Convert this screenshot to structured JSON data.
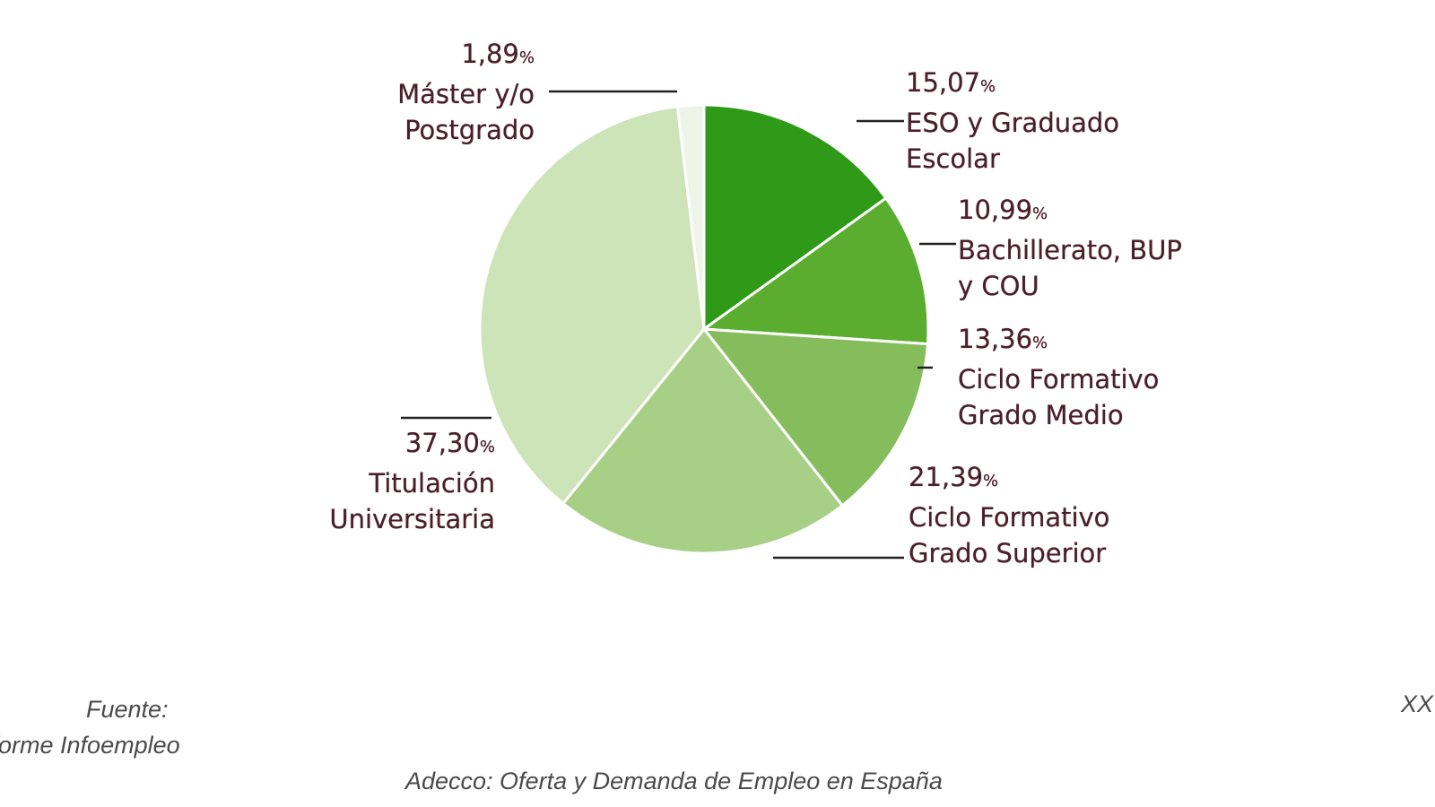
{
  "chart_data": {
    "type": "pie",
    "start_angle_deg": 0,
    "direction": "clockwise",
    "slices": [
      {
        "label_lines": [
          "ESO y Graduado",
          "Escolar"
        ],
        "pct_text": "15,07",
        "value": 15.07,
        "color": "#2f9a17"
      },
      {
        "label_lines": [
          "Bachillerato, BUP",
          "y COU"
        ],
        "pct_text": "10,99",
        "value": 10.99,
        "color": "#5aad2f"
      },
      {
        "label_lines": [
          "Ciclo Formativo",
          "Grado Medio"
        ],
        "pct_text": "13,36",
        "value": 13.36,
        "color": "#86bd5c"
      },
      {
        "label_lines": [
          "Ciclo Formativo",
          "Grado Superior"
        ],
        "pct_text": "21,39",
        "value": 21.39,
        "color": "#a8cf86"
      },
      {
        "label_lines": [
          "Titulación",
          "Universitaria"
        ],
        "pct_text": "37,30",
        "value": 37.3,
        "color": "#cde3b8"
      },
      {
        "label_lines": [
          "Máster y/o",
          "Postgrado"
        ],
        "pct_text": "1,89",
        "value": 1.89,
        "color": "#eef5e8"
      }
    ],
    "percent_sign": "%"
  },
  "footer": {
    "source_label": "Fuente:",
    "source_name": "Informe Infoempleo",
    "publication": "Adecco: Oferta y Demanda de Empleo en España",
    "right_mark": "XX"
  }
}
